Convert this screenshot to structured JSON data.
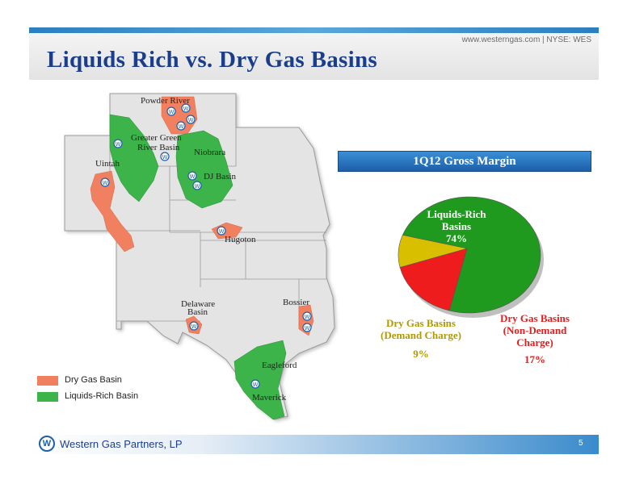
{
  "header": {
    "website": "www.westerngas.com | NYSE: WES",
    "title": "Liquids Rich vs. Dry Gas Basins"
  },
  "footer": {
    "logo_letter": "W",
    "company": "Western Gas Partners, LP",
    "page_number": "5"
  },
  "map": {
    "basins": [
      {
        "name": "Powder River",
        "type": "dry"
      },
      {
        "name": "Greater Green River Basin",
        "type": "liquids"
      },
      {
        "name": "Niobrara",
        "type": "liquids"
      },
      {
        "name": "Uintah",
        "type": "dry"
      },
      {
        "name": "DJ Basin",
        "type": "liquids"
      },
      {
        "name": "Hugoton",
        "type": "dry"
      },
      {
        "name": "Delaware Basin",
        "type": "dry"
      },
      {
        "name": "Bossier",
        "type": "dry"
      },
      {
        "name": "Eagleford",
        "type": "liquids"
      },
      {
        "name": "Maverick",
        "type": "liquids"
      }
    ],
    "legend": [
      {
        "label": "Dry Gas Basin",
        "color": "#f08060"
      },
      {
        "label": "Liquids-Rich Basin",
        "color": "#3cb44a"
      }
    ],
    "marker_letter": "W"
  },
  "chart_data": {
    "type": "pie",
    "title": "1Q12 Gross Margin",
    "slices": [
      {
        "label": "Liquids-Rich Basins",
        "value": 74,
        "display": "74%",
        "color": "#1f9a1f"
      },
      {
        "label": "Dry Gas Basins (Non-Demand Charge)",
        "value": 17,
        "display": "17%",
        "color": "#ee1c1c"
      },
      {
        "label": "Dry Gas Basins (Demand Charge)",
        "value": 9,
        "display": "9%",
        "color": "#d8c000"
      }
    ]
  }
}
